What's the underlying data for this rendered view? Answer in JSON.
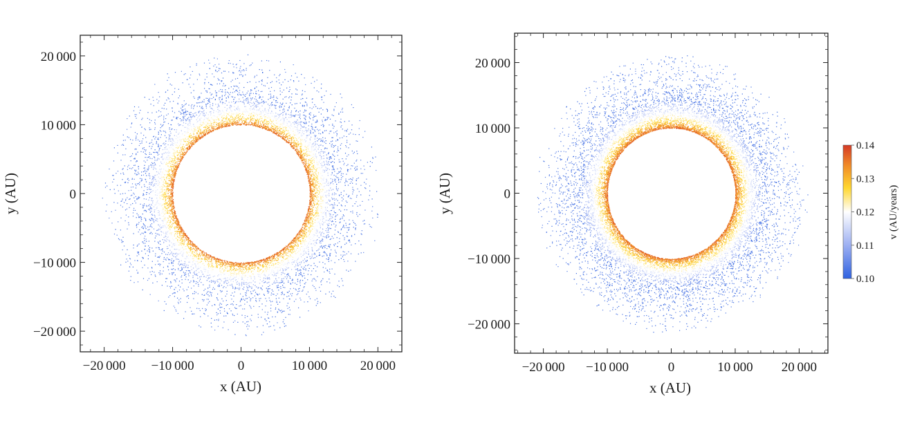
{
  "chart_data": [
    {
      "type": "scatter",
      "xlabel": "x (AU)",
      "ylabel": "y (AU)",
      "xlim": [
        -23500,
        23500
      ],
      "ylim": [
        -23000,
        23000
      ],
      "xticks": [
        -20000,
        -10000,
        0,
        10000,
        20000
      ],
      "yticks": [
        -20000,
        -10000,
        0,
        10000,
        20000
      ],
      "xtick_labels": [
        "−20 000",
        "−10 000",
        "0",
        "10 000",
        "20 000"
      ],
      "ytick_labels": [
        "−20 000",
        "−10 000",
        "0",
        "10 000",
        "20 000"
      ],
      "distribution": {
        "shape": "annulus",
        "center": [
          0,
          0
        ],
        "inner_radius": 10000,
        "outer_radius": 22000,
        "approx_points": 9000
      },
      "color_variable": "v (AU/years)",
      "color_trend": "speed highest (~0.13-0.14) near the inner edge, decreasing to ~0.10 at the outer edge"
    },
    {
      "type": "scatter",
      "xlabel": "x (AU)",
      "ylabel": "y (AU)",
      "xlim": [
        -24500,
        24500
      ],
      "ylim": [
        -24500,
        24500
      ],
      "xticks": [
        -20000,
        -10000,
        0,
        10000,
        20000
      ],
      "yticks": [
        -20000,
        -10000,
        0,
        10000,
        20000
      ],
      "xtick_labels": [
        "−20 000",
        "−10 000",
        "0",
        "10 000",
        "20 000"
      ],
      "ytick_labels": [
        "−20 000",
        "−10 000",
        "0",
        "10 000",
        "20 000"
      ],
      "distribution": {
        "shape": "annulus",
        "center": [
          0,
          0
        ],
        "inner_radius": 10000,
        "outer_radius": 23000,
        "approx_points": 12000
      },
      "color_variable": "v (AU/years)",
      "color_trend": "speed highest (~0.13-0.14) near the inner edge, decreasing to ~0.10 at the outer edge"
    }
  ],
  "colorbar": {
    "label": "v (AU/years)",
    "range": [
      0.1,
      0.14
    ],
    "ticks": [
      "0.14",
      "0.13",
      "0.12",
      "0.11",
      "0.10"
    ],
    "colors": [
      "#2f62e0",
      "#9db0f2",
      "#ffffff",
      "#ffd730",
      "#f08a28",
      "#d43a26"
    ]
  }
}
